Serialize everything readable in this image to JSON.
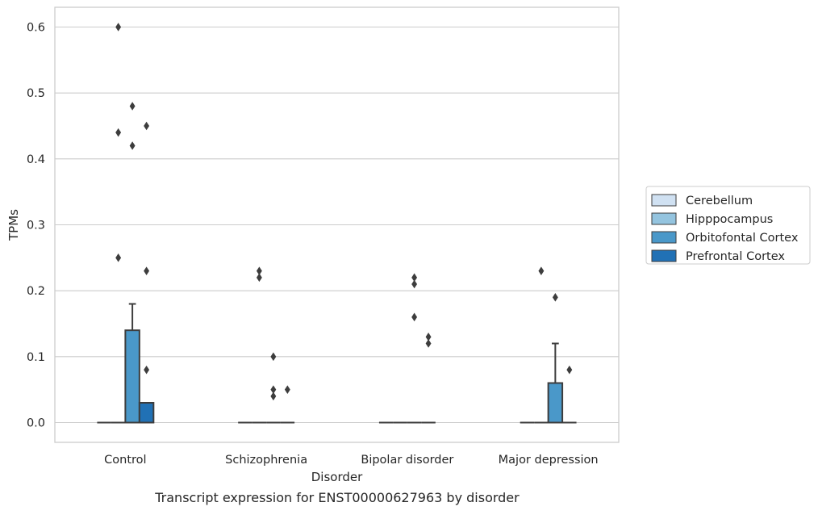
{
  "chart_data": {
    "type": "box",
    "title": "Transcript expression for ENST00000627963 by disorder",
    "xlabel": "Disorder",
    "ylabel": "TPMs",
    "ylim": [
      -0.03,
      0.63
    ],
    "yticks": [
      "0.0",
      "0.1",
      "0.2",
      "0.3",
      "0.4",
      "0.5",
      "0.6"
    ],
    "ytick_values": [
      0,
      0.1,
      0.2,
      0.3,
      0.4,
      0.5,
      0.6
    ],
    "grid": "horizontal",
    "legend_position": "right",
    "categories": [
      "Control",
      "Schizophrenia",
      "Bipolar disorder",
      "Major depression"
    ],
    "series": [
      {
        "name": "Cerebellum",
        "color": "#d0e1f2",
        "boxes": [
          {
            "q1": 0,
            "median": 0,
            "q3": 0,
            "whisker_low": 0,
            "whisker_high": 0,
            "outliers": []
          },
          {
            "q1": 0,
            "median": 0,
            "q3": 0,
            "whisker_low": 0,
            "whisker_high": 0,
            "outliers": []
          },
          {
            "q1": 0,
            "median": 0,
            "q3": 0,
            "whisker_low": 0,
            "whisker_high": 0,
            "outliers": []
          },
          {
            "q1": 0,
            "median": 0,
            "q3": 0,
            "whisker_low": 0,
            "whisker_high": 0,
            "outliers": []
          }
        ]
      },
      {
        "name": "Hipppocampus",
        "color": "#94c4df",
        "boxes": [
          {
            "q1": 0,
            "median": 0,
            "q3": 0,
            "whisker_low": 0,
            "whisker_high": 0,
            "outliers": [
              0.6,
              0.44,
              0.25
            ]
          },
          {
            "q1": 0,
            "median": 0,
            "q3": 0,
            "whisker_low": 0,
            "whisker_high": 0,
            "outliers": [
              0.23,
              0.22
            ]
          },
          {
            "q1": 0,
            "median": 0,
            "q3": 0,
            "whisker_low": 0,
            "whisker_high": 0,
            "outliers": []
          },
          {
            "q1": 0,
            "median": 0,
            "q3": 0,
            "whisker_low": 0,
            "whisker_high": 0,
            "outliers": [
              0.23
            ]
          }
        ]
      },
      {
        "name": "Orbitofontal Cortex",
        "color": "#4a98c9",
        "boxes": [
          {
            "q1": 0,
            "median": 0,
            "q3": 0.14,
            "whisker_low": 0,
            "whisker_high": 0.18,
            "outliers": [
              0.48,
              0.42
            ]
          },
          {
            "q1": 0,
            "median": 0,
            "q3": 0,
            "whisker_low": 0,
            "whisker_high": 0,
            "outliers": [
              0.1,
              0.05,
              0.04
            ]
          },
          {
            "q1": 0,
            "median": 0,
            "q3": 0,
            "whisker_low": 0,
            "whisker_high": 0,
            "outliers": [
              0.22,
              0.21,
              0.16
            ]
          },
          {
            "q1": 0,
            "median": 0,
            "q3": 0.06,
            "whisker_low": 0,
            "whisker_high": 0.12,
            "outliers": [
              0.19
            ]
          }
        ]
      },
      {
        "name": "Prefrontal Cortex",
        "color": "#2171b5",
        "boxes": [
          {
            "q1": 0,
            "median": 0,
            "q3": 0.03,
            "whisker_low": 0,
            "whisker_high": 0.03,
            "outliers": [
              0.45,
              0.23,
              0.08
            ]
          },
          {
            "q1": 0,
            "median": 0,
            "q3": 0,
            "whisker_low": 0,
            "whisker_high": 0,
            "outliers": [
              0.05
            ]
          },
          {
            "q1": 0,
            "median": 0,
            "q3": 0,
            "whisker_low": 0,
            "whisker_high": 0,
            "outliers": [
              0.13,
              0.12
            ]
          },
          {
            "q1": 0,
            "median": 0,
            "q3": 0,
            "whisker_low": 0,
            "whisker_high": 0,
            "outliers": [
              0.08
            ]
          }
        ]
      }
    ]
  }
}
